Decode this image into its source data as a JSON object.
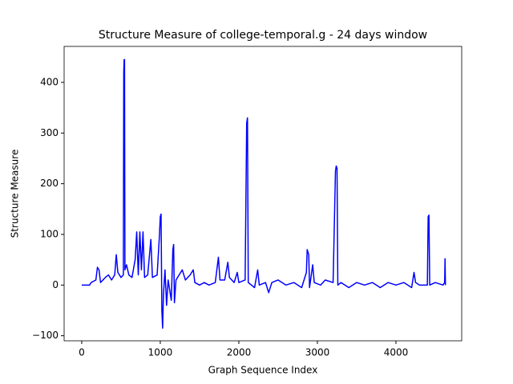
{
  "chart_data": {
    "type": "line",
    "title": "Structure Measure of college-temporal.g - 24 days window",
    "x_label": "Graph Sequence Index",
    "y_label": "Structure Measure",
    "x": [
      0,
      100,
      120,
      180,
      200,
      220,
      240,
      300,
      340,
      380,
      420,
      440,
      460,
      500,
      530,
      535,
      540,
      545,
      550,
      570,
      600,
      640,
      680,
      700,
      720,
      740,
      760,
      780,
      800,
      840,
      880,
      900,
      960,
      990,
      1000,
      1010,
      1020,
      1030,
      1040,
      1060,
      1080,
      1100,
      1140,
      1160,
      1170,
      1180,
      1200,
      1240,
      1280,
      1320,
      1380,
      1420,
      1440,
      1500,
      1560,
      1620,
      1700,
      1740,
      1760,
      1820,
      1860,
      1880,
      1940,
      1980,
      2000,
      2080,
      2100,
      2110,
      2120,
      2160,
      2200,
      2240,
      2260,
      2340,
      2380,
      2420,
      2500,
      2600,
      2700,
      2800,
      2860,
      2870,
      2890,
      2900,
      2940,
      2960,
      3040,
      3100,
      3200,
      3230,
      3240,
      3250,
      3260,
      3300,
      3400,
      3500,
      3600,
      3700,
      3800,
      3900,
      4000,
      4100,
      4200,
      4230,
      4250,
      4300,
      4400,
      4410,
      4420,
      4430,
      4500,
      4600,
      4620,
      4625,
      4630
    ],
    "series": [
      {
        "name": "Structure Measure",
        "color": "#0000ff",
        "values": [
          0,
          0,
          5,
          10,
          35,
          30,
          5,
          15,
          20,
          10,
          20,
          60,
          25,
          15,
          20,
          420,
          445,
          445,
          30,
          40,
          20,
          15,
          50,
          105,
          20,
          105,
          30,
          105,
          15,
          20,
          90,
          15,
          20,
          100,
          135,
          140,
          -50,
          -85,
          -20,
          30,
          -40,
          10,
          -30,
          70,
          80,
          -35,
          10,
          20,
          30,
          10,
          20,
          30,
          5,
          0,
          5,
          0,
          5,
          55,
          10,
          10,
          45,
          15,
          5,
          25,
          5,
          10,
          320,
          330,
          5,
          0,
          -5,
          30,
          0,
          5,
          -15,
          5,
          10,
          0,
          5,
          -5,
          25,
          70,
          60,
          -5,
          40,
          5,
          0,
          10,
          5,
          225,
          235,
          230,
          0,
          5,
          -5,
          5,
          0,
          5,
          -5,
          5,
          0,
          5,
          -5,
          25,
          5,
          0,
          0,
          135,
          138,
          0,
          5,
          0,
          5,
          52,
          0
        ]
      }
    ],
    "xlim": [
      -224,
      4837
    ],
    "ylim": [
      -110,
      471
    ],
    "xticks": [
      0,
      1000,
      2000,
      3000,
      4000
    ],
    "yticks": [
      {
        "value": -100,
        "label": "−100"
      },
      0,
      100,
      200,
      300,
      400
    ]
  }
}
